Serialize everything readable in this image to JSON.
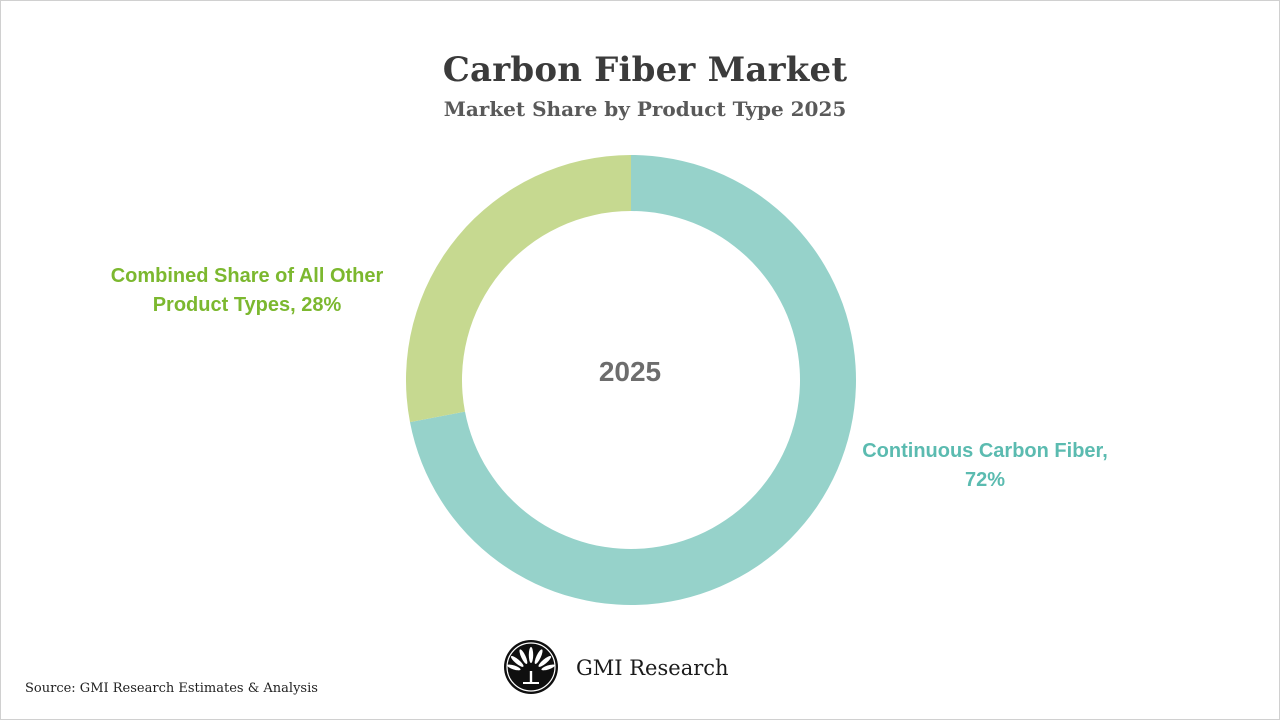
{
  "chart_data": {
    "type": "pie",
    "title": "Carbon Fiber Market",
    "subtitle": "Market Share by Product Type 2025",
    "center_label": "2025",
    "slices": [
      {
        "label": "Continuous Carbon Fiber, 72%",
        "value": 72,
        "color": "#96d2ca"
      },
      {
        "label": "Combined Share of All Other Product Types, 28%",
        "value": 28,
        "color": "#c6d990"
      }
    ],
    "label_colors": {
      "continuous": "#5bbbb0",
      "other": "#7cb82f"
    }
  },
  "footer": {
    "brand": "GMI Research",
    "source": "Source: GMI Research Estimates & Analysis"
  }
}
